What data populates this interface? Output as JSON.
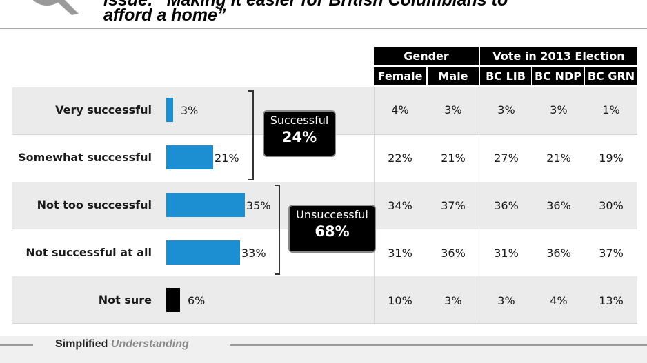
{
  "question": {
    "line1": "issue: “Making it easier for British Columbians to",
    "line2": "afford a home”"
  },
  "headers": {
    "gender": "Gender",
    "vote": "Vote in 2013 Election",
    "columns": [
      "Female",
      "Male",
      "BC LIB",
      "BC NDP",
      "BC GRN"
    ]
  },
  "groups": {
    "successful": {
      "label": "Successful",
      "value": "24%"
    },
    "unsuccessful": {
      "label": "Unsuccessful",
      "value": "68%"
    }
  },
  "colors": {
    "bar": "#1b8fd1",
    "not_sure_bar": "#000000",
    "header_bg": "#000000",
    "band_grey": "#ebebeb"
  },
  "footer": {
    "bold": "Simplified",
    "italic": "Understanding"
  },
  "chart_data": {
    "type": "bar",
    "orientation": "horizontal",
    "categories": [
      "Very successful",
      "Somewhat successful",
      "Not too successful",
      "Not successful at all",
      "Not sure"
    ],
    "values": [
      3,
      21,
      35,
      33,
      6
    ],
    "value_labels": [
      "3%",
      "21%",
      "35%",
      "33%",
      "6%"
    ],
    "xlim": [
      0,
      35
    ],
    "table": {
      "columns": [
        "Female",
        "Male",
        "BC LIB",
        "BC NDP",
        "BC GRN"
      ],
      "rows": [
        [
          "4%",
          "3%",
          "3%",
          "3%",
          "1%"
        ],
        [
          "22%",
          "21%",
          "27%",
          "21%",
          "19%"
        ],
        [
          "34%",
          "37%",
          "36%",
          "36%",
          "30%"
        ],
        [
          "31%",
          "36%",
          "31%",
          "36%",
          "37%"
        ],
        [
          "10%",
          "3%",
          "3%",
          "4%",
          "13%"
        ]
      ]
    }
  }
}
